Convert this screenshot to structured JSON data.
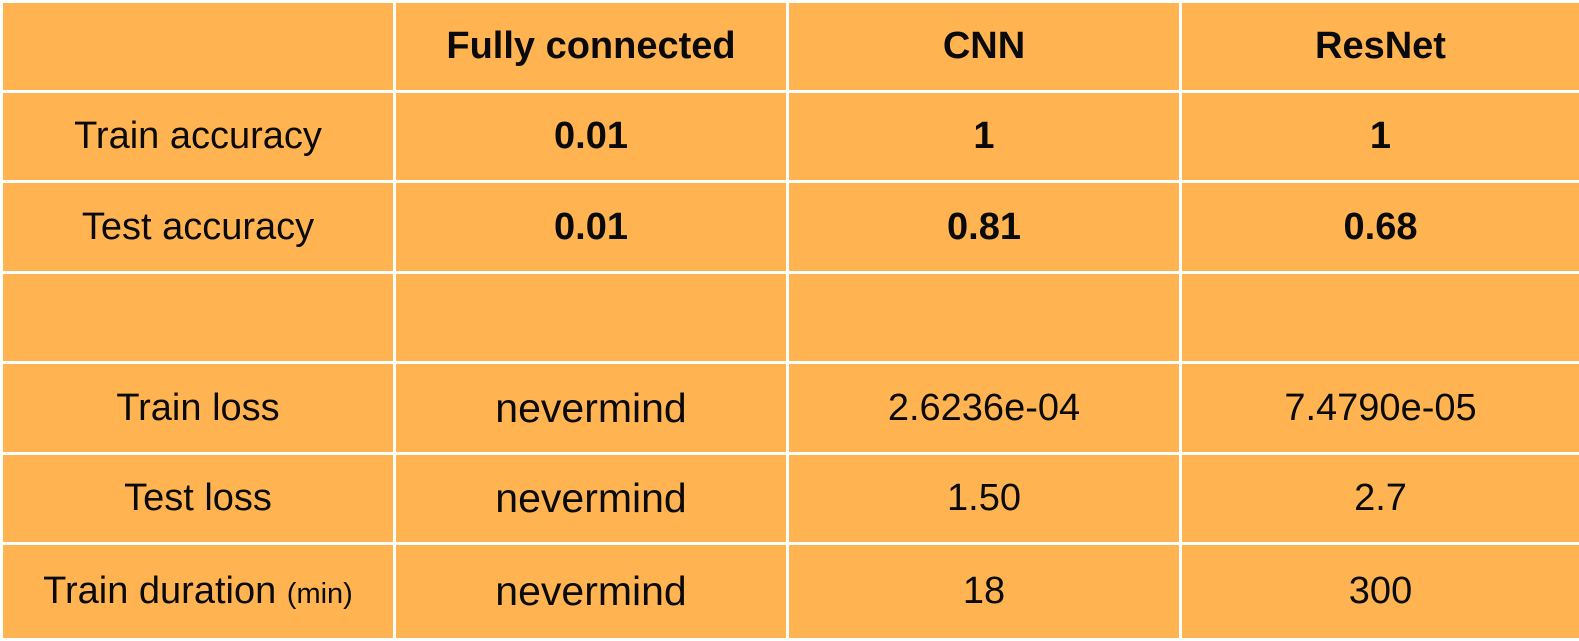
{
  "table": {
    "headers": [
      "",
      "Fully connected",
      "CNN",
      "ResNet"
    ],
    "rows": [
      {
        "label": "Train accuracy",
        "unit": "",
        "values": [
          "0.01",
          "1",
          "1"
        ]
      },
      {
        "label": "Test accuracy",
        "unit": "",
        "values": [
          "0.01",
          "0.81",
          "0.68"
        ]
      },
      {
        "label": "",
        "unit": "",
        "values": [
          "",
          "",
          ""
        ]
      },
      {
        "label": "Train loss",
        "unit": "",
        "values": [
          "nevermind",
          "2.6236e-04",
          "7.4790e-05"
        ]
      },
      {
        "label": "Test loss",
        "unit": "",
        "values": [
          "nevermind",
          "1.50",
          "2.7"
        ]
      },
      {
        "label": "Train duration",
        "unit": "(min)",
        "values": [
          "nevermind",
          "18",
          "300"
        ]
      }
    ]
  },
  "colors": {
    "cell_background": "#ffb451",
    "grid_lines": "#ffffff",
    "text": "#0a0a0a"
  }
}
